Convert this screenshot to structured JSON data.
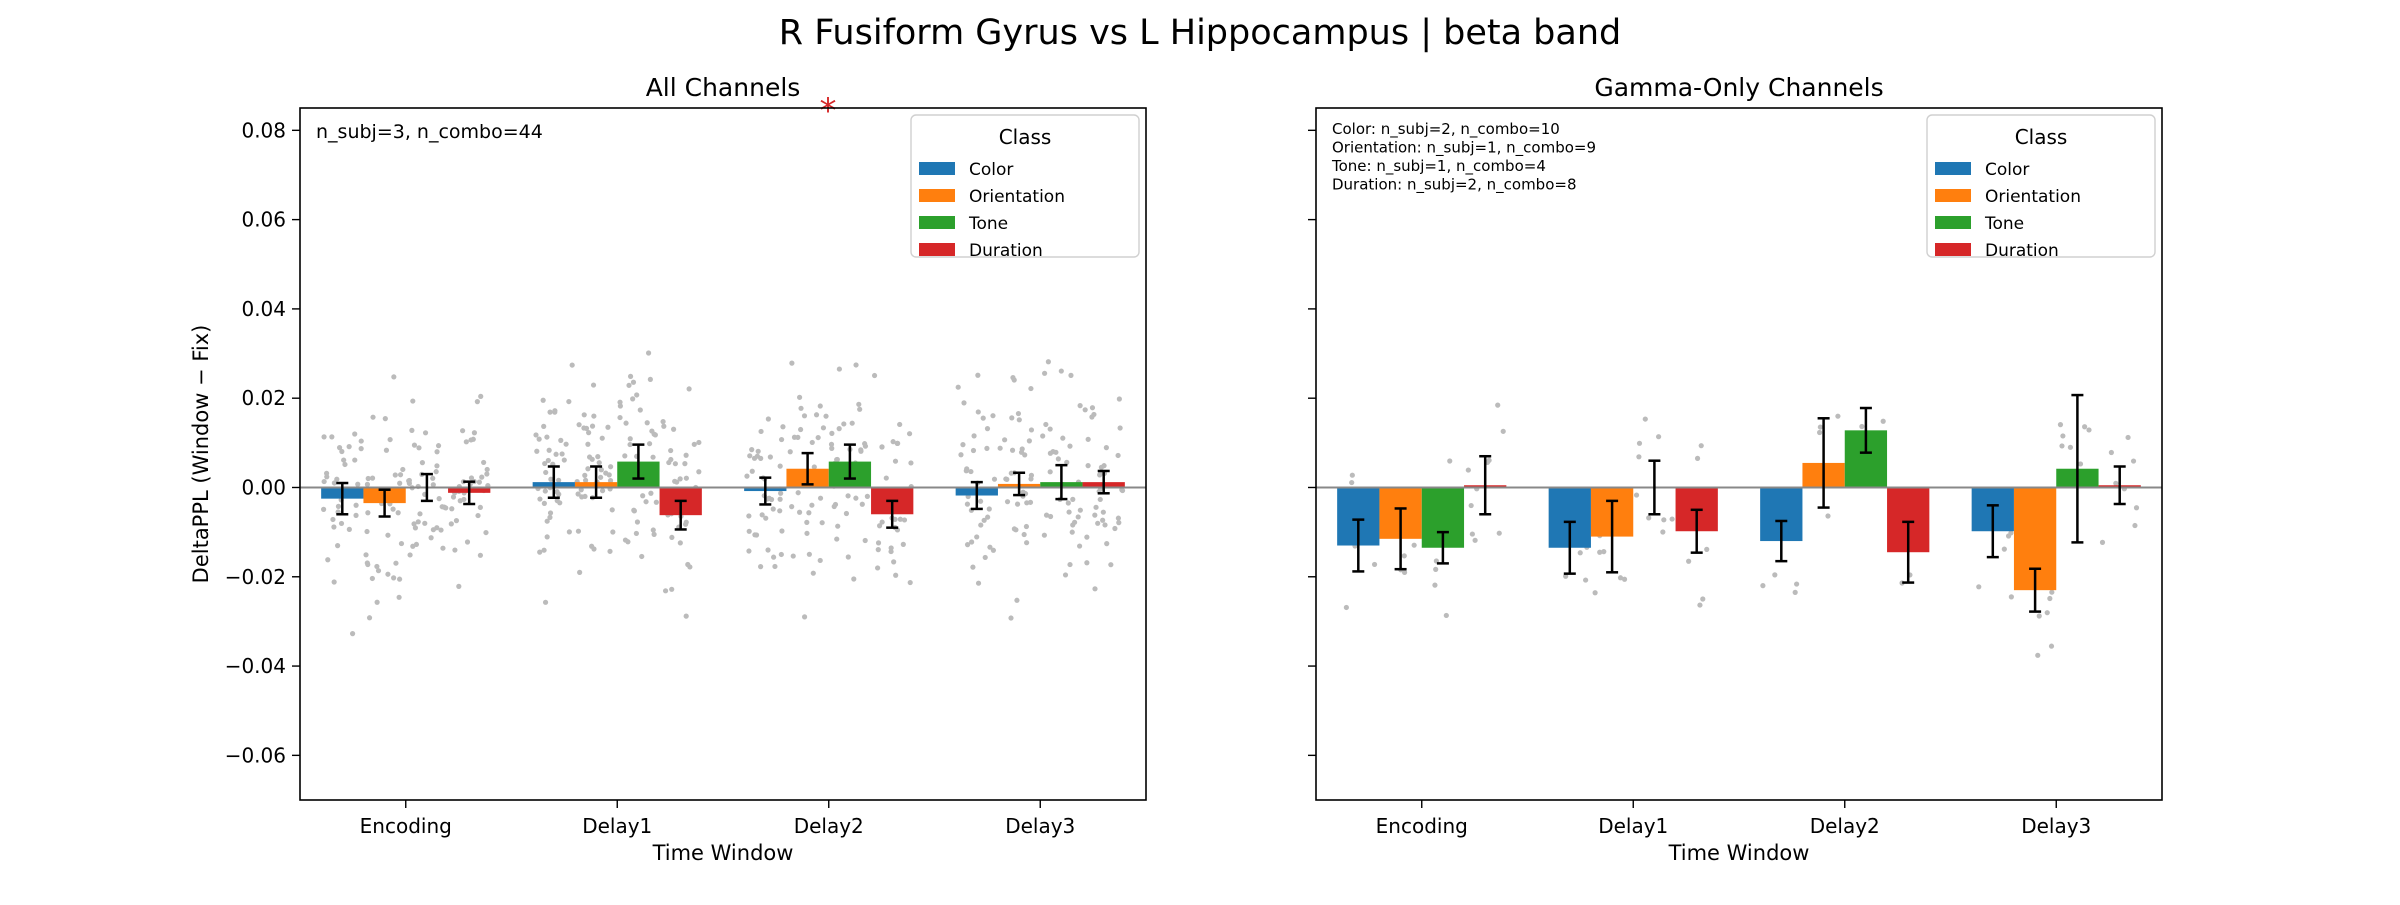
{
  "figure_title": "R Fusiform Gyrus vs L Hippocampus  |  beta band",
  "significance_marker": "*",
  "colors": {
    "Color": "#1f77b4",
    "Orientation": "#ff7f0e",
    "Tone": "#2ca02c",
    "Duration": "#d62728",
    "scatter": "#bbbbbb",
    "zero_line": "#888888"
  },
  "chart_data": [
    {
      "type": "bar",
      "title": "All Channels",
      "xlabel": "Time Window",
      "ylabel": "DeltaPPL (Window − Fix)",
      "ylim": [
        -0.07,
        0.085
      ],
      "yticks": [
        "0.08",
        "0.06",
        "0.04",
        "0.02",
        "0.00",
        "−0.02",
        "−0.04",
        "−0.06"
      ],
      "ytick_values": [
        0.08,
        0.06,
        0.04,
        0.02,
        0.0,
        -0.02,
        -0.04,
        -0.06
      ],
      "categories": [
        "Encoding",
        "Delay1",
        "Delay2",
        "Delay3"
      ],
      "legend": {
        "title": "Class",
        "position": "top-right"
      },
      "annotation": [
        "n_subj=3, n_combo=44"
      ],
      "series": [
        {
          "name": "Color",
          "values": [
            -0.0025,
            0.0012,
            -0.0008,
            -0.0018
          ],
          "err": [
            0.0035,
            0.0035,
            0.003,
            0.003
          ]
        },
        {
          "name": "Orientation",
          "values": [
            -0.0035,
            0.0012,
            0.0042,
            0.0008
          ],
          "err": [
            0.003,
            0.0035,
            0.0035,
            0.0025
          ]
        },
        {
          "name": "Tone",
          "values": [
            0.0,
            0.0058,
            0.0058,
            0.0012
          ],
          "err": [
            0.003,
            0.0038,
            0.0038,
            0.0038
          ]
        },
        {
          "name": "Duration",
          "values": [
            -0.0012,
            -0.0062,
            -0.006,
            0.0012
          ],
          "err": [
            0.0025,
            0.0032,
            0.003,
            0.0025
          ]
        }
      ]
    },
    {
      "type": "bar",
      "title": "Gamma-Only Channels",
      "xlabel": "Time Window",
      "ylabel": "",
      "ylim": [
        -0.07,
        0.085
      ],
      "categories": [
        "Encoding",
        "Delay1",
        "Delay2",
        "Delay3"
      ],
      "legend": {
        "title": "Class",
        "position": "top-right"
      },
      "annotation": [
        "Color: n_subj=2, n_combo=10",
        "Orientation: n_subj=1, n_combo=9",
        "Tone: n_subj=1, n_combo=4",
        "Duration: n_subj=2, n_combo=8"
      ],
      "series": [
        {
          "name": "Color",
          "values": [
            -0.013,
            -0.0135,
            -0.012,
            -0.0098
          ],
          "err": [
            0.0058,
            0.0058,
            0.0045,
            0.0058
          ]
        },
        {
          "name": "Orientation",
          "values": [
            -0.0115,
            -0.011,
            0.0055,
            -0.023
          ],
          "err": [
            0.0068,
            0.008,
            0.01,
            0.0048
          ]
        },
        {
          "name": "Tone",
          "values": [
            -0.0135,
            0.0,
            0.0128,
            0.0042
          ],
          "err": [
            0.0035,
            0.006,
            0.005,
            0.0165
          ]
        },
        {
          "name": "Duration",
          "values": [
            0.0005,
            -0.0098,
            -0.0145,
            0.0005
          ],
          "err": [
            0.0065,
            0.0048,
            0.0068,
            0.0042
          ]
        }
      ]
    }
  ]
}
